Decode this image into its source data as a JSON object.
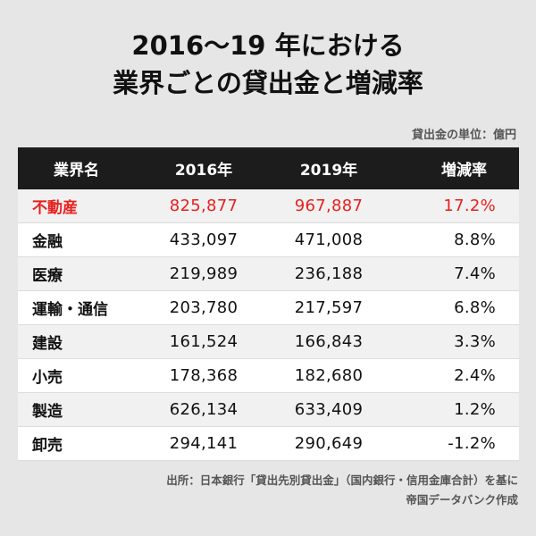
{
  "title": {
    "line1": "2016〜19 年における",
    "line2": "業界ごとの貸出金と増減率"
  },
  "unit_note": "貸出金の単位：億円",
  "table": {
    "headers": [
      "業界名",
      "2016年",
      "2019年",
      "増減率"
    ],
    "rows": [
      {
        "industry": "不動産",
        "y2016": "825,877",
        "y2019": "967,887",
        "change": "17.2%",
        "highlight": true
      },
      {
        "industry": "金融",
        "y2016": "433,097",
        "y2019": "471,008",
        "change": "8.8%"
      },
      {
        "industry": "医療",
        "y2016": "219,989",
        "y2019": "236,188",
        "change": "7.4%"
      },
      {
        "industry": "運輸・通信",
        "y2016": "203,780",
        "y2019": "217,597",
        "change": "6.8%"
      },
      {
        "industry": "建設",
        "y2016": "161,524",
        "y2019": "166,843",
        "change": "3.3%"
      },
      {
        "industry": "小売",
        "y2016": "178,368",
        "y2019": "182,680",
        "change": "2.4%"
      },
      {
        "industry": "製造",
        "y2016": "626,134",
        "y2019": "633,409",
        "change": "1.2%"
      },
      {
        "industry": "卸売",
        "y2016": "294,141",
        "y2019": "290,649",
        "change": "-1.2%"
      }
    ]
  },
  "source": {
    "line1": "出所：日本銀行「貸出先別貸出金」（国内銀行・信用金庫合計）を基に",
    "line2": "帝国データバンク作成"
  },
  "colors": {
    "highlight": "#e8201e",
    "header_bg": "#1c1c1c",
    "background": "#e6e6e6"
  },
  "chart_data": {
    "type": "table",
    "title": "2016〜19 年における 業界ごとの貸出金と増減率",
    "columns": [
      "業界名",
      "2016年",
      "2019年",
      "増減率"
    ],
    "unit": "億円",
    "categories": [
      "不動産",
      "金融",
      "医療",
      "運輸・通信",
      "建設",
      "小売",
      "製造",
      "卸売"
    ],
    "series": [
      {
        "name": "2016年",
        "values": [
          825877,
          433097,
          219989,
          203780,
          161524,
          178368,
          626134,
          294141
        ]
      },
      {
        "name": "2019年",
        "values": [
          967887,
          471008,
          236188,
          217597,
          166843,
          182680,
          633409,
          290649
        ]
      },
      {
        "name": "増減率",
        "values": [
          17.2,
          8.8,
          7.4,
          6.8,
          3.3,
          2.4,
          1.2,
          -1.2
        ]
      }
    ]
  }
}
